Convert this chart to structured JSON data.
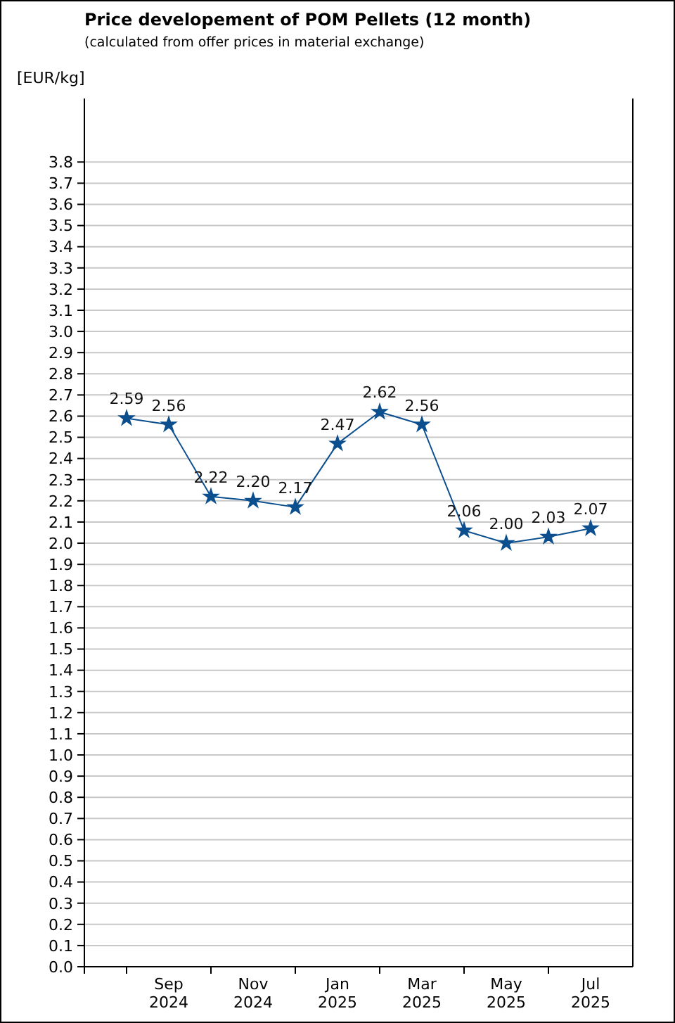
{
  "chart_data": {
    "type": "line",
    "title": "Price developement of POM Pellets (12 month)",
    "subtitle": "(calculated from offer prices in material exchange)",
    "ylabel": "[EUR/kg]",
    "categories": [
      null,
      "Sep 2024",
      null,
      "Nov 2024",
      null,
      "Jan 2025",
      null,
      "Mar 2025",
      null,
      "May 2025",
      null,
      "Jul 2025"
    ],
    "values": [
      2.59,
      2.56,
      2.22,
      2.2,
      2.17,
      2.47,
      2.62,
      2.56,
      2.06,
      2.0,
      2.03,
      2.07
    ],
    "value_labels": [
      "2.59",
      "2.56",
      "2.22",
      "2.20",
      "2.17",
      "2.47",
      "2.62",
      "2.56",
      "2.06",
      "2.00",
      "2.03",
      "2.07"
    ],
    "color": "#0c4f8f",
    "marker": "star",
    "line_style": "solid",
    "grid": "y",
    "ylim": [
      0,
      4.1
    ],
    "yticks": [
      {
        "value": 0,
        "label": "0.0"
      },
      0.1,
      0.2,
      0.3,
      0.4,
      0.5,
      0.6,
      0.7,
      0.8,
      0.9,
      {
        "value": 1,
        "label": "1.0"
      },
      1.1,
      1.2,
      1.3,
      1.4,
      1.5,
      1.6,
      1.7,
      1.8,
      1.9,
      {
        "value": 2,
        "label": "2.0"
      },
      2.1,
      2.2,
      2.3,
      2.4,
      2.5,
      2.6,
      2.7,
      2.8,
      2.9,
      {
        "value": 3,
        "label": "3.0"
      },
      3.1,
      3.2,
      3.3,
      3.4,
      3.5,
      3.6,
      3.7,
      3.8
    ]
  }
}
